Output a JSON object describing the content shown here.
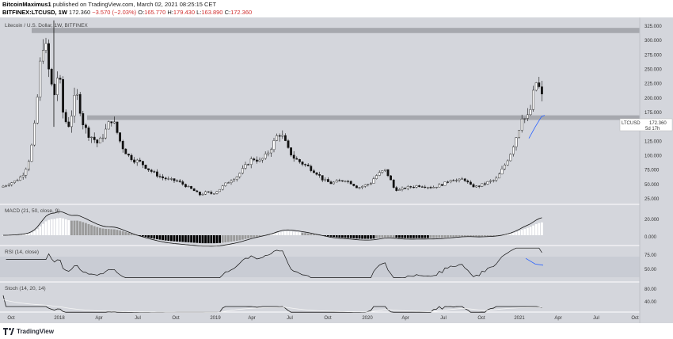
{
  "header": {
    "author": "BitcoinMaximus1",
    "published": "published on TradingView.com, March 02, 2021 08:25:15 CET",
    "symbol": "BITFINEX:LTCUSD, 1W",
    "last": "172.360",
    "change": "−3.570 (−2.03%)",
    "open_label": "O:",
    "open": "165.770",
    "high_label": "H:",
    "high": "179.430",
    "low_label": "L:",
    "low": "163.890",
    "close_label": "C:",
    "close": "172.360"
  },
  "chart": {
    "title": "Litecoin / U.S. Dollar, 1W, BITFINEX",
    "price_tag": {
      "symbol": "LTCUSD",
      "price": "172.360",
      "countdown": "5d 17h"
    },
    "price_axis": [
      "325.000",
      "300.000",
      "275.000",
      "250.000",
      "225.000",
      "200.000",
      "175.000",
      "150.000",
      "125.000",
      "100.000",
      "75.000",
      "50.000",
      "25.000"
    ],
    "price_axis_values": [
      325,
      300,
      275,
      250,
      225,
      200,
      175,
      150,
      125,
      100,
      75,
      50,
      25
    ],
    "resistance_zone": [
      313,
      322
    ],
    "support_zone": [
      162,
      170
    ],
    "macd_label": "MACD (21, 50, close, 9)",
    "macd_axis": [
      "20.000",
      "0.000"
    ],
    "rsi_label": "RSI (14, close)",
    "rsi_axis": [
      "75.00",
      "50.00"
    ],
    "stoch_label": "Stoch (14, 20, 14)",
    "stoch_axis": [
      "80.00",
      "40.00"
    ],
    "time_axis": [
      {
        "label": "Oct",
        "x": 14
      },
      {
        "label": "2018",
        "x": 75
      },
      {
        "label": "Apr",
        "x": 125
      },
      {
        "label": "Jul",
        "x": 174
      },
      {
        "label": "Oct",
        "x": 222
      },
      {
        "label": "2019",
        "x": 272
      },
      {
        "label": "Apr",
        "x": 318
      },
      {
        "label": "Jul",
        "x": 366
      },
      {
        "label": "Oct",
        "x": 414
      },
      {
        "label": "2020",
        "x": 464
      },
      {
        "label": "Apr",
        "x": 512
      },
      {
        "label": "Jul",
        "x": 560
      },
      {
        "label": "Oct",
        "x": 608
      },
      {
        "label": "2021",
        "x": 656
      },
      {
        "label": "Apr",
        "x": 705
      },
      {
        "label": "Jul",
        "x": 753
      },
      {
        "label": "Oct",
        "x": 802
      }
    ]
  },
  "chart_data": {
    "type": "candlestick",
    "symbol": "LTCUSD",
    "interval": "1W",
    "ylim": [
      0,
      340
    ],
    "keypoints": [
      [
        0,
        45
      ],
      [
        6,
        48
      ],
      [
        12,
        52
      ],
      [
        18,
        55
      ],
      [
        24,
        60
      ],
      [
        30,
        70
      ],
      [
        36,
        90
      ],
      [
        42,
        130
      ],
      [
        46,
        180
      ],
      [
        50,
        250
      ],
      [
        56,
        310
      ],
      [
        60,
        260
      ],
      [
        64,
        230
      ],
      [
        68,
        200
      ],
      [
        74,
        250
      ],
      [
        80,
        170
      ],
      [
        86,
        150
      ],
      [
        90,
        170
      ],
      [
        96,
        210
      ],
      [
        100,
        190
      ],
      [
        104,
        160
      ],
      [
        110,
        140
      ],
      [
        118,
        130
      ],
      [
        124,
        120
      ],
      [
        130,
        135
      ],
      [
        136,
        150
      ],
      [
        140,
        165
      ],
      [
        146,
        150
      ],
      [
        150,
        130
      ],
      [
        156,
        112
      ],
      [
        162,
        100
      ],
      [
        170,
        92
      ],
      [
        178,
        88
      ],
      [
        186,
        78
      ],
      [
        194,
        70
      ],
      [
        204,
        62
      ],
      [
        214,
        58
      ],
      [
        224,
        56
      ],
      [
        234,
        48
      ],
      [
        244,
        40
      ],
      [
        252,
        32
      ],
      [
        260,
        36
      ],
      [
        268,
        34
      ],
      [
        276,
        40
      ],
      [
        284,
        50
      ],
      [
        292,
        58
      ],
      [
        300,
        65
      ],
      [
        308,
        78
      ],
      [
        316,
        92
      ],
      [
        322,
        95
      ],
      [
        328,
        90
      ],
      [
        336,
        100
      ],
      [
        344,
        118
      ],
      [
        352,
        140
      ],
      [
        358,
        130
      ],
      [
        364,
        110
      ],
      [
        372,
        95
      ],
      [
        380,
        88
      ],
      [
        390,
        80
      ],
      [
        400,
        70
      ],
      [
        408,
        58
      ],
      [
        418,
        52
      ],
      [
        426,
        55
      ],
      [
        436,
        58
      ],
      [
        444,
        52
      ],
      [
        452,
        44
      ],
      [
        460,
        48
      ],
      [
        468,
        52
      ],
      [
        474,
        64
      ],
      [
        480,
        70
      ],
      [
        486,
        75
      ],
      [
        492,
        62
      ],
      [
        498,
        42
      ],
      [
        504,
        40
      ],
      [
        512,
        44
      ],
      [
        520,
        46
      ],
      [
        528,
        48
      ],
      [
        536,
        47
      ],
      [
        546,
        45
      ],
      [
        554,
        48
      ],
      [
        562,
        52
      ],
      [
        570,
        60
      ],
      [
        578,
        56
      ],
      [
        586,
        60
      ],
      [
        594,
        48
      ],
      [
        602,
        46
      ],
      [
        610,
        50
      ],
      [
        618,
        55
      ],
      [
        626,
        58
      ],
      [
        632,
        70
      ],
      [
        638,
        85
      ],
      [
        644,
        102
      ],
      [
        650,
        125
      ],
      [
        656,
        150
      ],
      [
        660,
        175
      ],
      [
        664,
        160
      ],
      [
        668,
        170
      ],
      [
        672,
        190
      ],
      [
        676,
        230
      ],
      [
        680,
        220
      ],
      [
        684,
        205
      ],
      [
        688,
        172
      ]
    ]
  }
}
